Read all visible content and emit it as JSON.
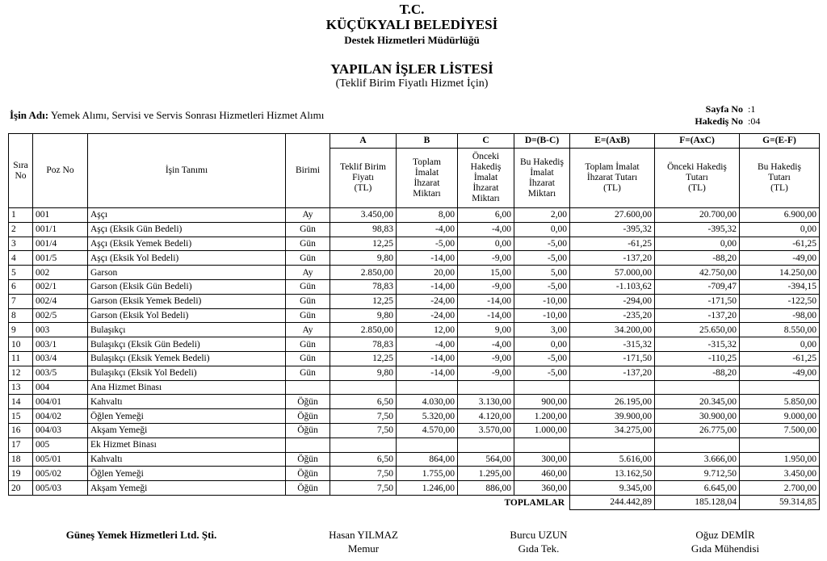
{
  "header": {
    "line1": "T.C.",
    "line2": "KÜÇÜKYALI BELEDİYESİ",
    "line3": "Destek Hizmetleri Müdürlüğü",
    "title": "YAPILAN İŞLER LİSTESİ",
    "subtitle": "(Teklif Birim Fiyatlı Hizmet İçin)"
  },
  "info": {
    "job_label": "İşin Adı:",
    "job_name": "Yemek Alımı, Servisi ve Servis Sonrası Hizmetleri Hizmet Alımı",
    "page_label": "Sayfa No",
    "page_value": ":1",
    "progress_label": "Hakediş No",
    "progress_value": ":04"
  },
  "table": {
    "letters": [
      "A",
      "B",
      "C",
      "D=(B-C)",
      "E=(AxB)",
      "F=(AxC)",
      "G=(E-F)"
    ],
    "columns": [
      [
        "Sıra",
        "No"
      ],
      [
        "Poz No"
      ],
      [
        "İşin Tanımı"
      ],
      [
        "Birimi"
      ],
      [
        "Teklif Birim",
        "Fiyatı",
        "(TL)"
      ],
      [
        "Toplam",
        "İmalat",
        "İhzarat",
        "Miktarı"
      ],
      [
        "Önceki",
        "Hakediş",
        "İmalat",
        "İhzarat",
        "Miktarı"
      ],
      [
        "Bu Hakediş",
        "İmalat",
        "İhzarat",
        "Miktarı"
      ],
      [
        "Toplam İmalat",
        "İhzarat Tutarı",
        "(TL)"
      ],
      [
        "Önceki Hakediş",
        "Tutarı",
        "(TL)"
      ],
      [
        "Bu Hakediş",
        "Tutarı",
        "(TL)"
      ]
    ],
    "rows": [
      [
        "1",
        "001",
        "Aşçı",
        "Ay",
        "3.450,00",
        "8,00",
        "6,00",
        "2,00",
        "27.600,00",
        "20.700,00",
        "6.900,00"
      ],
      [
        "2",
        "001/1",
        "Aşçı (Eksik Gün Bedeli)",
        "Gün",
        "98,83",
        "-4,00",
        "-4,00",
        "0,00",
        "-395,32",
        "-395,32",
        "0,00"
      ],
      [
        "3",
        "001/4",
        "Aşçı (Eksik Yemek Bedeli)",
        "Gün",
        "12,25",
        "-5,00",
        "0,00",
        "-5,00",
        "-61,25",
        "0,00",
        "-61,25"
      ],
      [
        "4",
        "001/5",
        "Aşçı (Eksik Yol Bedeli)",
        "Gün",
        "9,80",
        "-14,00",
        "-9,00",
        "-5,00",
        "-137,20",
        "-88,20",
        "-49,00"
      ],
      [
        "5",
        "002",
        "Garson",
        "Ay",
        "2.850,00",
        "20,00",
        "15,00",
        "5,00",
        "57.000,00",
        "42.750,00",
        "14.250,00"
      ],
      [
        "6",
        "002/1",
        "Garson (Eksik Gün Bedeli)",
        "Gün",
        "78,83",
        "-14,00",
        "-9,00",
        "-5,00",
        "-1.103,62",
        "-709,47",
        "-394,15"
      ],
      [
        "7",
        "002/4",
        "Garson (Eksik Yemek Bedeli)",
        "Gün",
        "12,25",
        "-24,00",
        "-14,00",
        "-10,00",
        "-294,00",
        "-171,50",
        "-122,50"
      ],
      [
        "8",
        "002/5",
        "Garson (Eksik Yol Bedeli)",
        "Gün",
        "9,80",
        "-24,00",
        "-14,00",
        "-10,00",
        "-235,20",
        "-137,20",
        "-98,00"
      ],
      [
        "9",
        "003",
        "Bulaşıkçı",
        "Ay",
        "2.850,00",
        "12,00",
        "9,00",
        "3,00",
        "34.200,00",
        "25.650,00",
        "8.550,00"
      ],
      [
        "10",
        "003/1",
        "Bulaşıkçı (Eksik Gün Bedeli)",
        "Gün",
        "78,83",
        "-4,00",
        "-4,00",
        "0,00",
        "-315,32",
        "-315,32",
        "0,00"
      ],
      [
        "11",
        "003/4",
        "Bulaşıkçı (Eksik Yemek Bedeli)",
        "Gün",
        "12,25",
        "-14,00",
        "-9,00",
        "-5,00",
        "-171,50",
        "-110,25",
        "-61,25"
      ],
      [
        "12",
        "003/5",
        "Bulaşıkçı (Eksik Yol Bedeli)",
        "Gün",
        "9,80",
        "-14,00",
        "-9,00",
        "-5,00",
        "-137,20",
        "-88,20",
        "-49,00"
      ],
      [
        "13",
        "004",
        "Ana Hizmet Binası"
      ],
      [
        "14",
        "004/01",
        "Kahvaltı",
        "Öğün",
        "6,50",
        "4.030,00",
        "3.130,00",
        "900,00",
        "26.195,00",
        "20.345,00",
        "5.850,00"
      ],
      [
        "15",
        "004/02",
        "Öğlen Yemeği",
        "Öğün",
        "7,50",
        "5.320,00",
        "4.120,00",
        "1.200,00",
        "39.900,00",
        "30.900,00",
        "9.000,00"
      ],
      [
        "16",
        "004/03",
        "Akşam Yemeği",
        "Öğün",
        "7,50",
        "4.570,00",
        "3.570,00",
        "1.000,00",
        "34.275,00",
        "26.775,00",
        "7.500,00"
      ],
      [
        "17",
        "005",
        "Ek Hizmet Binası"
      ],
      [
        "18",
        "005/01",
        "Kahvaltı",
        "Öğün",
        "6,50",
        "864,00",
        "564,00",
        "300,00",
        "5.616,00",
        "3.666,00",
        "1.950,00"
      ],
      [
        "19",
        "005/02",
        "Öğlen Yemeği",
        "Öğün",
        "7,50",
        "1.755,00",
        "1.295,00",
        "460,00",
        "13.162,50",
        "9.712,50",
        "3.450,00"
      ],
      [
        "20",
        "005/03",
        "Akşam Yemeği",
        "Öğün",
        "7,50",
        "1.246,00",
        "886,00",
        "360,00",
        "9.345,00",
        "6.645,00",
        "2.700,00"
      ]
    ],
    "totals_label": "TOPLAMLAR",
    "totals": [
      "244.442,89",
      "185.128,04",
      "59.314,85"
    ]
  },
  "signatures": [
    {
      "name": "Güneş Yemek Hizmetleri Ltd. Şti."
    },
    {
      "name": "Hasan YILMAZ",
      "title": "Memur"
    },
    {
      "name": "Burcu UZUN",
      "title": "Gıda Tek."
    },
    {
      "name": "Oğuz DEMİR",
      "title": "Gıda Mühendisi"
    }
  ]
}
